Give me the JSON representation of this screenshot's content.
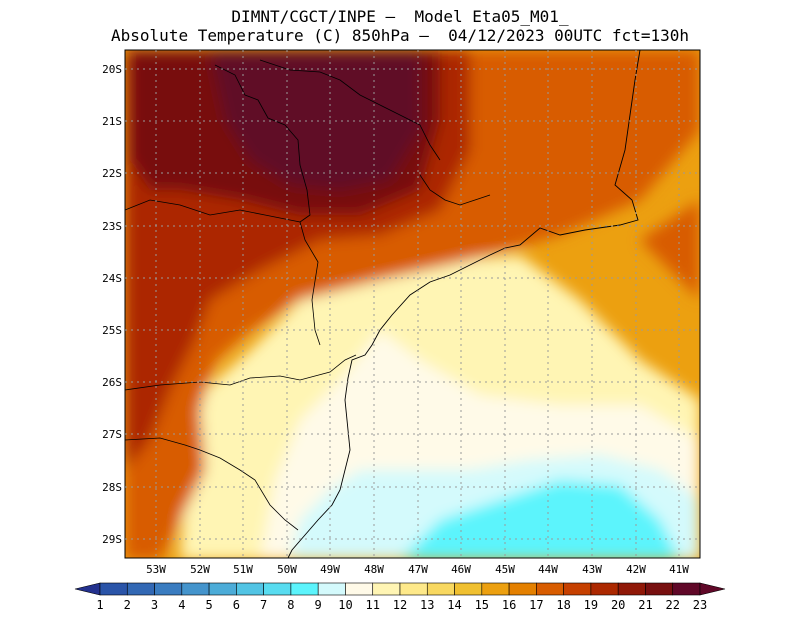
{
  "title": {
    "line1": "DIMNT/CGCT/INPE –  Model Eta05_M01_",
    "line2": "Absolute Temperature (C) 850hPa –  04/12/2023 00UTC fct=130h"
  },
  "map": {
    "lat_labels": [
      "20S",
      "21S",
      "22S",
      "23S",
      "24S",
      "25S",
      "26S",
      "27S",
      "28S",
      "29S"
    ],
    "lon_labels": [
      "53W",
      "52W",
      "51W",
      "50W",
      "49W",
      "48W",
      "47W",
      "46W",
      "45W",
      "44W",
      "43W",
      "42W",
      "41W"
    ]
  },
  "colorbar": {
    "labels": [
      "1",
      "2",
      "3",
      "4",
      "5",
      "6",
      "7",
      "8",
      "9",
      "10",
      "11",
      "12",
      "13",
      "14",
      "15",
      "16",
      "17",
      "18",
      "19",
      "20",
      "21",
      "22",
      "23"
    ],
    "colors": [
      "#2040a0",
      "#2a54a8",
      "#3268b4",
      "#3a7cc0",
      "#4494cc",
      "#4cacd8",
      "#52c4e4",
      "#58dcf0",
      "#5cf4fc",
      "#d4fafc",
      "#fffae8",
      "#fff5b4",
      "#fee98a",
      "#f8d860",
      "#f0c030",
      "#eca010",
      "#e48000",
      "#d85c00",
      "#c64000",
      "#ac2800",
      "#901808",
      "#781010",
      "#600828"
    ],
    "low_arrow_color": "#23318e",
    "high_arrow_color": "#600828"
  }
}
